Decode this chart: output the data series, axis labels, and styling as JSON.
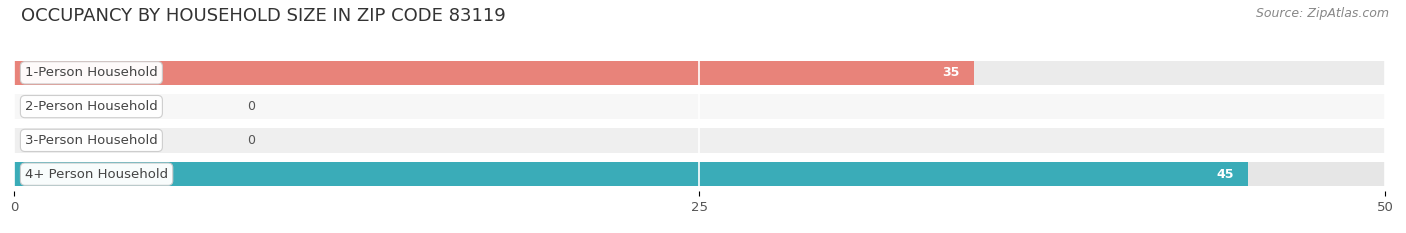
{
  "title": "OCCUPANCY BY HOUSEHOLD SIZE IN ZIP CODE 83119",
  "source": "Source: ZipAtlas.com",
  "categories": [
    "1-Person Household",
    "2-Person Household",
    "3-Person Household",
    "4+ Person Household"
  ],
  "values": [
    35,
    0,
    0,
    45
  ],
  "bar_colors": [
    "#E8837A",
    "#A8C4E0",
    "#C4A8D4",
    "#3AACB8"
  ],
  "row_bg_colors": [
    "#EAEAEA",
    "#F5F5F5",
    "#EEEEEE",
    "#E4E4E4"
  ],
  "background_color": "#FFFFFF",
  "xlim": [
    0,
    50
  ],
  "xticks": [
    0,
    25,
    50
  ],
  "title_fontsize": 13,
  "label_fontsize": 9.5,
  "value_fontsize": 9,
  "source_fontsize": 9
}
